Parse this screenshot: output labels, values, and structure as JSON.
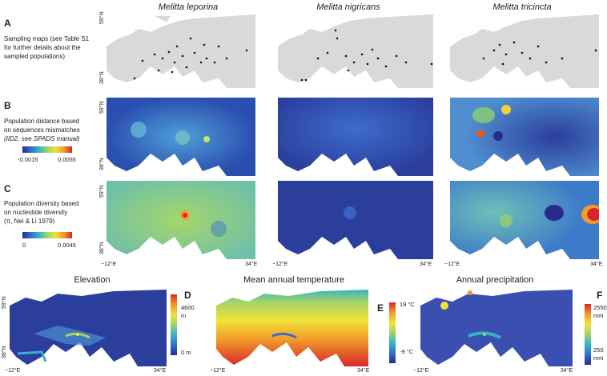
{
  "species": [
    "Melitta leporina",
    "Melitta nigricans",
    "Melitta tricincta"
  ],
  "rows": [
    {
      "letter": "A",
      "desc1": "Sampling maps (see Table S1",
      "desc2": "for further details about the",
      "desc3": "sampled populations)"
    },
    {
      "letter": "B",
      "desc1": "Population distance based",
      "desc2": "on sequences mismatches",
      "desc3": "(IID2, see SPADS manual)"
    },
    {
      "letter": "C",
      "desc1": "Population diversity based",
      "desc2": "on nucleotide diversity",
      "desc3": "(π, Nei & Li 1979)"
    }
  ],
  "legendB": {
    "min": "-0.0015",
    "max": "0.0055"
  },
  "legendC": {
    "min": "0",
    "max": "0.0045"
  },
  "lat_top": "59°N",
  "lat_bottom": "38°N",
  "lon_left": "−12°E",
  "lon_right": "34°E",
  "bottom": [
    {
      "title": "Elevation",
      "letter": "D",
      "max": "4600",
      "max_unit": "m",
      "min": "0 m"
    },
    {
      "title": "Mean annual temperature",
      "letter": "E",
      "max": "19 °C",
      "max_unit": "",
      "min": "-9 °C"
    },
    {
      "title": "Annual precipitation",
      "letter": "F",
      "max": "2550",
      "max_unit": "mm",
      "min": "250",
      "min_unit": "mm"
    }
  ],
  "colors": {
    "land_grey": "#d9d9d9",
    "sea_blue": "#3b4fb0",
    "high": "#d8252a",
    "low": "#2a2a8a"
  }
}
